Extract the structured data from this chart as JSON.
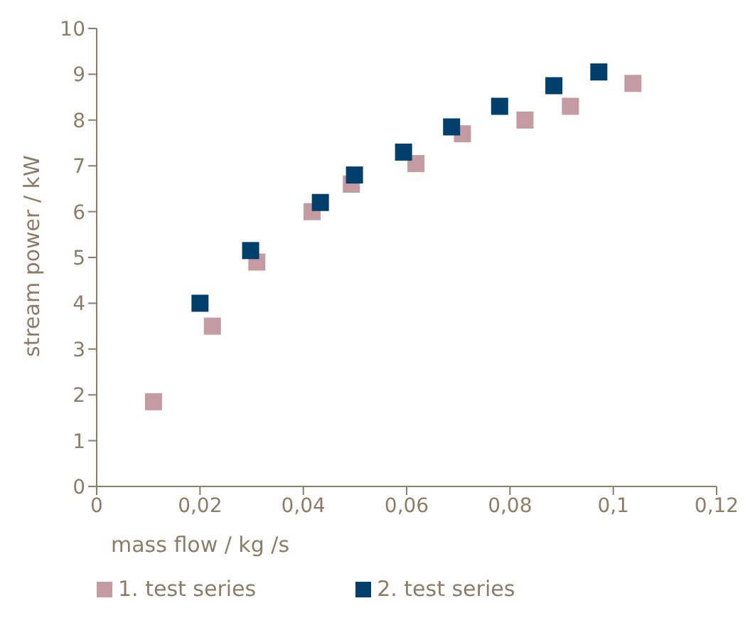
{
  "chart_data": {
    "type": "scatter",
    "xlabel": "mass flow / kg /s",
    "ylabel": "stream power / kW",
    "marker": "square",
    "legend": "bottom left",
    "grid": false,
    "xlim": [
      0,
      0.12
    ],
    "xticks": [
      {
        "value": 0,
        "label": "0"
      },
      {
        "value": 0.02,
        "label": "0,02"
      },
      {
        "value": 0.04,
        "label": "0,04"
      },
      {
        "value": 0.06,
        "label": "0,06"
      },
      {
        "value": 0.08,
        "label": "0,08"
      },
      {
        "value": 0.1,
        "label": "0,1"
      },
      {
        "value": 0.12,
        "label": "0,12"
      }
    ],
    "ylim": [
      0,
      10
    ],
    "yticks": [
      0,
      1,
      2,
      3,
      4,
      5,
      6,
      7,
      8,
      9,
      10
    ],
    "series": [
      {
        "name": "1. test series",
        "color": "#c49ba2",
        "x": [
          0.011,
          0.0224,
          0.031,
          0.0417,
          0.0493,
          0.0618,
          0.0708,
          0.0829,
          0.0917,
          0.1038
        ],
        "values": [
          1.85,
          3.5,
          4.9,
          6.0,
          6.6,
          7.05,
          7.7,
          8.0,
          8.3,
          8.8
        ]
      },
      {
        "name": "2. test series",
        "color": "#003f6b",
        "x": [
          0.02,
          0.0298,
          0.0433,
          0.0499,
          0.0594,
          0.0687,
          0.078,
          0.0885,
          0.0972
        ],
        "values": [
          4.0,
          5.15,
          6.2,
          6.8,
          7.3,
          7.85,
          8.3,
          8.75,
          9.05
        ]
      }
    ]
  }
}
